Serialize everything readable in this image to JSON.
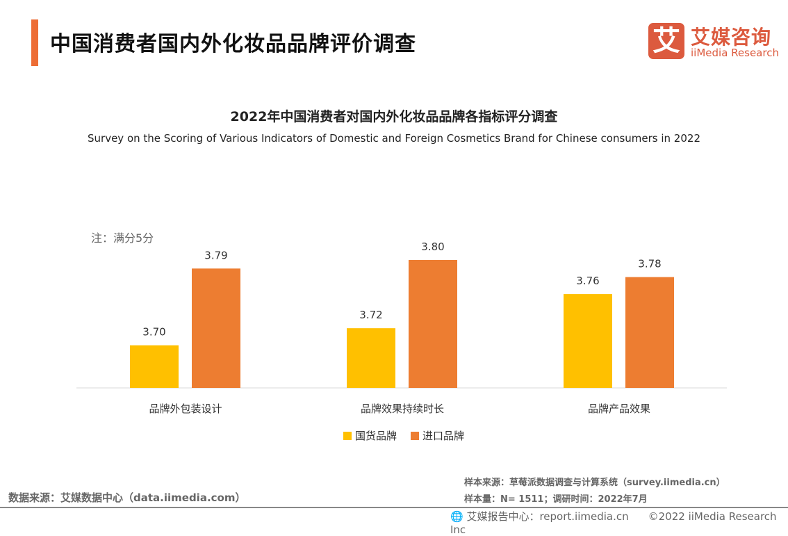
{
  "header": {
    "title": "中国消费者国内外化妆品品牌评价调查",
    "logo_mark": "艾",
    "logo_cn": "艾媒咨询",
    "logo_en": "iiMedia Research"
  },
  "chart_data": {
    "type": "bar",
    "title": "2022年中国消费者对国内外化妆品品牌各指标评分调查",
    "subtitle": "Survey on the Scoring of Various Indicators of Domestic and Foreign Cosmetics Brand for Chinese consumers in 2022",
    "note": "注：满分5分",
    "categories": [
      "品牌外包装设计",
      "品牌效果持续时长",
      "品牌产品效果"
    ],
    "series": [
      {
        "name": "国货品牌",
        "values": [
          3.7,
          3.72,
          3.76
        ],
        "labels": [
          "3.70",
          "3.72",
          "3.76"
        ],
        "color": "#ffc000"
      },
      {
        "name": "进口品牌",
        "values": [
          3.79,
          3.8,
          3.78
        ],
        "labels": [
          "3.79",
          "3.80",
          "3.78"
        ],
        "color": "#ed7d31"
      }
    ],
    "ylim": [
      3.65,
      3.82
    ],
    "grid": false,
    "legend": "bottom"
  },
  "footer": {
    "source": "数据来源：艾媒数据中心（data.iimedia.com）",
    "sample_source": "样本来源：草莓派数据调查与计算系统（survey.iimedia.cn）",
    "sample_size": "样本量：N= 1511；调研时间：2022年7月",
    "report": "艾媒报告中心：report.iimedia.cn",
    "copyright": "©2022  iiMedia Research  Inc"
  }
}
